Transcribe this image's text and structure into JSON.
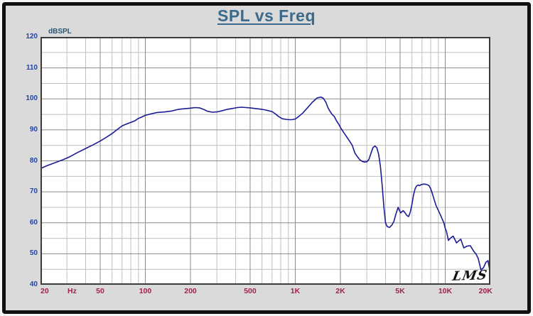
{
  "title": "SPL vs Freq",
  "logo": "LMS",
  "colors": {
    "title": "#3a6a8c",
    "y_axis_name": "#2a5878",
    "y_tick_labels": "#2244aa",
    "x_tick_labels": "#a02052",
    "curve": "#1b1b96",
    "grid_major": "#8a8a8a",
    "grid_minor": "#bfbfbf",
    "plot_border": "#3a3a3a",
    "plot_bg": "#ffffff",
    "frame_bg": "#dadada",
    "frame_border": "#101010"
  },
  "chart_data": {
    "type": "line",
    "title": "SPL vs Freq",
    "ylabel": "dBSPL",
    "x_scale": "log",
    "x_range": [
      20,
      20000
    ],
    "y_range": [
      40,
      120
    ],
    "grid": true,
    "y_major_ticks": [
      120,
      110,
      100,
      90,
      80,
      70,
      60,
      50,
      40
    ],
    "y_minor_ticks": [
      115,
      105,
      95,
      85,
      75,
      65,
      55,
      45
    ],
    "x_labeled_ticks": [
      {
        "f": 20,
        "label": "20"
      },
      {
        "f": 50,
        "label": "50"
      },
      {
        "f": 100,
        "label": "100"
      },
      {
        "f": 200,
        "label": "200"
      },
      {
        "f": 500,
        "label": "500"
      },
      {
        "f": 1000,
        "label": "1K"
      },
      {
        "f": 2000,
        "label": "2K"
      },
      {
        "f": 5000,
        "label": "5K"
      },
      {
        "f": 10000,
        "label": "10K"
      },
      {
        "f": 20000,
        "label": "20K"
      }
    ],
    "x_unit_label": "Hz",
    "x_minor_ticks": [
      30,
      40,
      60,
      70,
      80,
      90,
      300,
      400,
      600,
      700,
      800,
      900,
      3000,
      4000,
      6000,
      7000,
      8000,
      9000
    ],
    "series": [
      {
        "name": "SPL",
        "points": [
          [
            20,
            77.5
          ],
          [
            22,
            78.4
          ],
          [
            25,
            79.4
          ],
          [
            28,
            80.3
          ],
          [
            31,
            81.2
          ],
          [
            35,
            82.6
          ],
          [
            40,
            84.0
          ],
          [
            45,
            85.2
          ],
          [
            50,
            86.4
          ],
          [
            55,
            87.6
          ],
          [
            60,
            88.8
          ],
          [
            65,
            90.1
          ],
          [
            70,
            91.3
          ],
          [
            75,
            91.9
          ],
          [
            80,
            92.4
          ],
          [
            85,
            92.9
          ],
          [
            90,
            93.7
          ],
          [
            95,
            94.2
          ],
          [
            100,
            94.7
          ],
          [
            110,
            95.2
          ],
          [
            120,
            95.6
          ],
          [
            135,
            95.8
          ],
          [
            150,
            96.1
          ],
          [
            165,
            96.6
          ],
          [
            180,
            96.8
          ],
          [
            200,
            97.0
          ],
          [
            215,
            97.2
          ],
          [
            230,
            97.1
          ],
          [
            245,
            96.6
          ],
          [
            260,
            96.0
          ],
          [
            280,
            95.7
          ],
          [
            300,
            95.8
          ],
          [
            320,
            96.1
          ],
          [
            350,
            96.6
          ],
          [
            380,
            96.9
          ],
          [
            410,
            97.2
          ],
          [
            440,
            97.3
          ],
          [
            470,
            97.2
          ],
          [
            500,
            97.1
          ],
          [
            540,
            96.9
          ],
          [
            580,
            96.7
          ],
          [
            620,
            96.5
          ],
          [
            660,
            96.2
          ],
          [
            700,
            95.9
          ],
          [
            740,
            95.1
          ],
          [
            780,
            94.2
          ],
          [
            820,
            93.6
          ],
          [
            860,
            93.4
          ],
          [
            900,
            93.3
          ],
          [
            950,
            93.3
          ],
          [
            1000,
            93.5
          ],
          [
            1060,
            94.4
          ],
          [
            1120,
            95.4
          ],
          [
            1200,
            97.0
          ],
          [
            1300,
            98.9
          ],
          [
            1400,
            100.3
          ],
          [
            1480,
            100.6
          ],
          [
            1540,
            100.2
          ],
          [
            1600,
            98.9
          ],
          [
            1650,
            97.2
          ],
          [
            1700,
            96.1
          ],
          [
            1760,
            95.0
          ],
          [
            1820,
            94.3
          ],
          [
            1880,
            93.0
          ],
          [
            1950,
            91.8
          ],
          [
            2000,
            90.8
          ],
          [
            2100,
            89.2
          ],
          [
            2200,
            87.8
          ],
          [
            2300,
            86.4
          ],
          [
            2400,
            85.0
          ],
          [
            2500,
            82.5
          ],
          [
            2600,
            81.3
          ],
          [
            2700,
            80.3
          ],
          [
            2800,
            79.8
          ],
          [
            2900,
            79.6
          ],
          [
            3000,
            79.7
          ],
          [
            3100,
            80.5
          ],
          [
            3200,
            82.5
          ],
          [
            3300,
            84.3
          ],
          [
            3400,
            84.8
          ],
          [
            3500,
            84.2
          ],
          [
            3600,
            82.0
          ],
          [
            3700,
            78.0
          ],
          [
            3800,
            72.0
          ],
          [
            3900,
            65.0
          ],
          [
            4000,
            60.0
          ],
          [
            4100,
            58.8
          ],
          [
            4250,
            58.5
          ],
          [
            4400,
            59.2
          ],
          [
            4550,
            60.5
          ],
          [
            4700,
            63.0
          ],
          [
            4850,
            65.0
          ],
          [
            4950,
            64.0
          ],
          [
            5050,
            63.2
          ],
          [
            5150,
            63.6
          ],
          [
            5250,
            63.9
          ],
          [
            5400,
            63.2
          ],
          [
            5550,
            62.4
          ],
          [
            5700,
            62.0
          ],
          [
            5850,
            63.5
          ],
          [
            6000,
            66.0
          ],
          [
            6150,
            69.0
          ],
          [
            6300,
            71.0
          ],
          [
            6450,
            71.9
          ],
          [
            6600,
            72.2
          ],
          [
            6750,
            72.0
          ],
          [
            6900,
            72.3
          ],
          [
            7200,
            72.5
          ],
          [
            7500,
            72.4
          ],
          [
            7800,
            72.0
          ],
          [
            8000,
            71.0
          ],
          [
            8200,
            69.5
          ],
          [
            8400,
            67.8
          ],
          [
            8700,
            65.5
          ],
          [
            9000,
            64.0
          ],
          [
            9300,
            62.5
          ],
          [
            9600,
            61.0
          ],
          [
            9800,
            60.0
          ],
          [
            10000,
            58.2
          ],
          [
            10200,
            57.2
          ],
          [
            10500,
            54.3
          ],
          [
            10800,
            55.0
          ],
          [
            11300,
            55.7
          ],
          [
            11900,
            53.5
          ],
          [
            12300,
            54.2
          ],
          [
            12700,
            54.7
          ],
          [
            13300,
            51.9
          ],
          [
            14000,
            52.5
          ],
          [
            14700,
            52.6
          ],
          [
            15500,
            50.8
          ],
          [
            16000,
            50.0
          ],
          [
            16600,
            48.5
          ],
          [
            17300,
            44.8
          ],
          [
            18000,
            45.5
          ],
          [
            18700,
            47.3
          ],
          [
            19300,
            47.8
          ],
          [
            19700,
            45.3
          ],
          [
            20000,
            43.7
          ]
        ]
      }
    ]
  }
}
